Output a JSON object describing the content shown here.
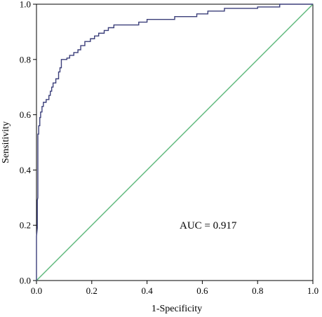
{
  "chart_data": {
    "type": "line",
    "title": "",
    "xlabel": "1-Specificity",
    "ylabel": "Sensitivity",
    "xlim": [
      0.0,
      1.0
    ],
    "ylim": [
      0.0,
      1.0
    ],
    "x_ticks": [
      "0.0",
      "0.2",
      "0.4",
      "0.6",
      "0.8",
      "1.0"
    ],
    "y_ticks": [
      "0.0",
      "0.2",
      "0.4",
      "0.6",
      "0.8",
      "1.0"
    ],
    "grid": false,
    "legend": "none",
    "annotation": "AUC = 0.917",
    "colors": {
      "roc": "#3b3f7a",
      "reference": "#5cb87a",
      "axes": "#000000"
    },
    "series": [
      {
        "values": [
          [
            0.0,
            0.0
          ],
          [
            0.0,
            0.16
          ],
          [
            0.003,
            0.19
          ],
          [
            0.003,
            0.29
          ],
          [
            0.005,
            0.3
          ],
          [
            0.005,
            0.53
          ],
          [
            0.008,
            0.53
          ],
          [
            0.008,
            0.56
          ],
          [
            0.012,
            0.56
          ],
          [
            0.012,
            0.59
          ],
          [
            0.015,
            0.59
          ],
          [
            0.015,
            0.61
          ],
          [
            0.02,
            0.61
          ],
          [
            0.02,
            0.63
          ],
          [
            0.025,
            0.63
          ],
          [
            0.025,
            0.645
          ],
          [
            0.035,
            0.645
          ],
          [
            0.035,
            0.655
          ],
          [
            0.045,
            0.655
          ],
          [
            0.045,
            0.67
          ],
          [
            0.05,
            0.67
          ],
          [
            0.05,
            0.685
          ],
          [
            0.055,
            0.685
          ],
          [
            0.055,
            0.7
          ],
          [
            0.06,
            0.7
          ],
          [
            0.06,
            0.715
          ],
          [
            0.07,
            0.715
          ],
          [
            0.07,
            0.73
          ],
          [
            0.08,
            0.73
          ],
          [
            0.08,
            0.755
          ],
          [
            0.085,
            0.755
          ],
          [
            0.085,
            0.77
          ],
          [
            0.09,
            0.77
          ],
          [
            0.09,
            0.8
          ],
          [
            0.11,
            0.8
          ],
          [
            0.11,
            0.805
          ],
          [
            0.12,
            0.805
          ],
          [
            0.12,
            0.815
          ],
          [
            0.135,
            0.815
          ],
          [
            0.135,
            0.825
          ],
          [
            0.15,
            0.825
          ],
          [
            0.15,
            0.835
          ],
          [
            0.16,
            0.835
          ],
          [
            0.16,
            0.85
          ],
          [
            0.175,
            0.85
          ],
          [
            0.175,
            0.865
          ],
          [
            0.195,
            0.865
          ],
          [
            0.195,
            0.875
          ],
          [
            0.21,
            0.875
          ],
          [
            0.21,
            0.885
          ],
          [
            0.225,
            0.885
          ],
          [
            0.225,
            0.895
          ],
          [
            0.245,
            0.895
          ],
          [
            0.245,
            0.905
          ],
          [
            0.26,
            0.905
          ],
          [
            0.26,
            0.915
          ],
          [
            0.28,
            0.915
          ],
          [
            0.28,
            0.925
          ],
          [
            0.37,
            0.925
          ],
          [
            0.37,
            0.935
          ],
          [
            0.4,
            0.935
          ],
          [
            0.4,
            0.945
          ],
          [
            0.5,
            0.945
          ],
          [
            0.5,
            0.955
          ],
          [
            0.58,
            0.955
          ],
          [
            0.58,
            0.965
          ],
          [
            0.62,
            0.965
          ],
          [
            0.62,
            0.975
          ],
          [
            0.68,
            0.975
          ],
          [
            0.68,
            0.985
          ],
          [
            0.8,
            0.985
          ],
          [
            0.8,
            0.99
          ],
          [
            0.88,
            0.99
          ],
          [
            0.88,
            1.0
          ],
          [
            1.0,
            1.0
          ]
        ]
      },
      {
        "values": [
          [
            0.0,
            0.0
          ],
          [
            1.0,
            1.0
          ]
        ]
      }
    ]
  }
}
